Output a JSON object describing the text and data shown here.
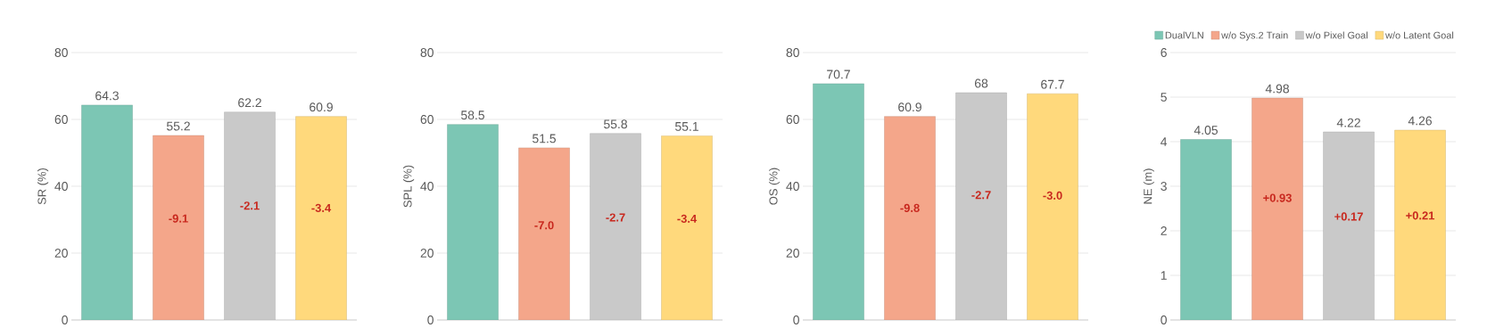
{
  "chart_data": [
    {
      "type": "bar",
      "ylabel": "SR (%)",
      "categories": [
        null
      ],
      "ylim": [
        0,
        80
      ],
      "yticks": [
        0,
        20,
        40,
        60,
        80
      ],
      "grid": "y",
      "data_labels": true,
      "series": [
        {
          "color": "#7cc6b4",
          "values": [
            64.3
          ]
        },
        {
          "color": "#f4a68a",
          "values": [
            55.2
          ]
        },
        {
          "color": "#c9c9c9",
          "values": [
            62.2
          ]
        },
        {
          "color": "#ffd97c",
          "values": [
            60.9
          ]
        }
      ],
      "annotations": [
        "-9.1",
        "-2.1",
        "-3.4"
      ]
    },
    {
      "type": "bar",
      "ylabel": "SPL (%)",
      "categories": [
        null
      ],
      "ylim": [
        0,
        80
      ],
      "yticks": [
        0,
        20,
        40,
        60,
        80
      ],
      "grid": "y",
      "data_labels": true,
      "series": [
        {
          "color": "#7cc6b4",
          "values": [
            58.5
          ]
        },
        {
          "color": "#f4a68a",
          "values": [
            51.5
          ]
        },
        {
          "color": "#c9c9c9",
          "values": [
            55.8
          ]
        },
        {
          "color": "#ffd97c",
          "values": [
            55.1
          ]
        }
      ],
      "annotations": [
        "-7.0",
        "-2.7",
        "-3.4"
      ]
    },
    {
      "type": "bar",
      "ylabel": "OS (%)",
      "categories": [
        null
      ],
      "ylim": [
        0,
        80
      ],
      "yticks": [
        0,
        20,
        40,
        60,
        80
      ],
      "grid": "y",
      "data_labels": true,
      "series": [
        {
          "color": "#7cc6b4",
          "values": [
            70.7
          ]
        },
        {
          "color": "#f4a68a",
          "values": [
            60.9
          ]
        },
        {
          "color": "#c9c9c9",
          "values": [
            68
          ]
        },
        {
          "color": "#ffd97c",
          "values": [
            67.7
          ]
        }
      ],
      "annotations": [
        "-9.8",
        "-2.7",
        "-3.0"
      ]
    },
    {
      "type": "bar",
      "ylabel": "NE (m)",
      "categories": [
        null
      ],
      "ylim": [
        0,
        6
      ],
      "yticks": [
        0,
        1,
        2,
        3,
        4,
        5,
        6
      ],
      "grid": "y",
      "data_labels": true,
      "legend": "top right",
      "series": [
        {
          "name": "DualVLN",
          "color": "#7cc6b4",
          "values": [
            4.05
          ]
        },
        {
          "name": "w/o Sys.2 Train",
          "color": "#f4a68a",
          "values": [
            4.98
          ]
        },
        {
          "name": "w/o Pixel Goal",
          "color": "#c9c9c9",
          "values": [
            4.22
          ]
        },
        {
          "name": "w/o Latent Goal",
          "color": "#ffd97c",
          "values": [
            4.26
          ]
        }
      ],
      "annotations": [
        "+0.93",
        "+0.17",
        "+0.21"
      ]
    }
  ]
}
